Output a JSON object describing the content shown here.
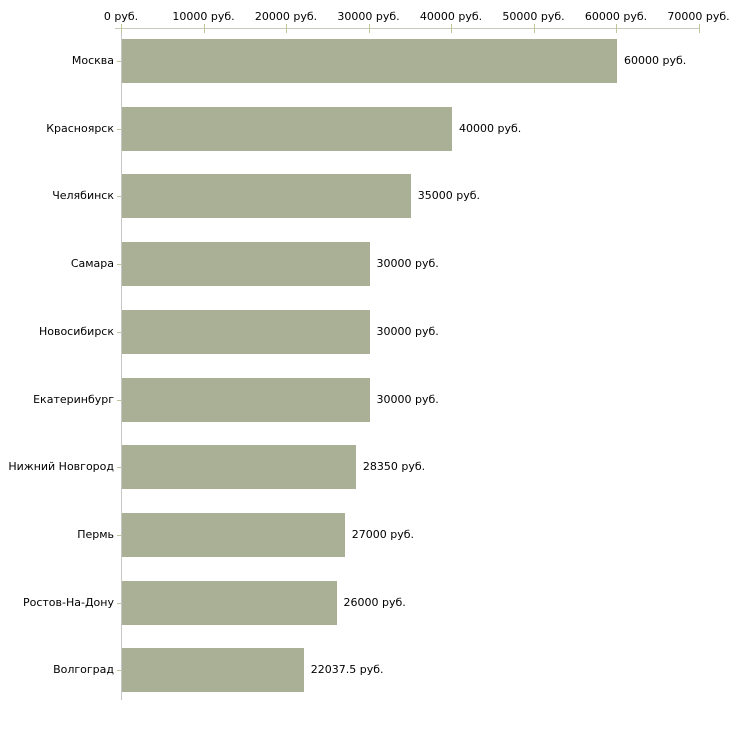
{
  "chart_data": {
    "type": "bar",
    "orientation": "horizontal",
    "title": "",
    "xlabel": "",
    "ylabel": "",
    "grid": false,
    "legend": false,
    "categories": [
      "Москва",
      "Красноярск",
      "Челябинск",
      "Самара",
      "Новосибирск",
      "Екатеринбург",
      "Нижний Новгород",
      "Пермь",
      "Ростов-На-Дону",
      "Волгоград"
    ],
    "values": [
      60000,
      40000,
      35000,
      30000,
      30000,
      30000,
      28350,
      27000,
      26000,
      22037.5
    ],
    "value_labels": [
      "60000 руб.",
      "40000 руб.",
      "35000 руб.",
      "30000 руб.",
      "30000 руб.",
      "30000 руб.",
      "28350 руб.",
      "27000 руб.",
      "26000 руб.",
      "22037.5 руб."
    ],
    "x_axis": {
      "position": "top",
      "min": 0,
      "max": 70000,
      "tick_values": [
        0,
        10000,
        20000,
        30000,
        40000,
        50000,
        60000,
        70000
      ],
      "tick_labels": [
        "0 руб.",
        "10000 руб.",
        "20000 руб.",
        "30000 руб.",
        "40000 руб.",
        "50000 руб.",
        "60000 руб.",
        "70000 руб."
      ]
    }
  },
  "colors": {
    "bar_fill": "#a9b096",
    "axis_line": "#c9c9bb",
    "y_axis_line": "#c6c6c6",
    "tick_mark": "#c2c49a",
    "label_text": "#000000",
    "background": "#ffffff"
  }
}
